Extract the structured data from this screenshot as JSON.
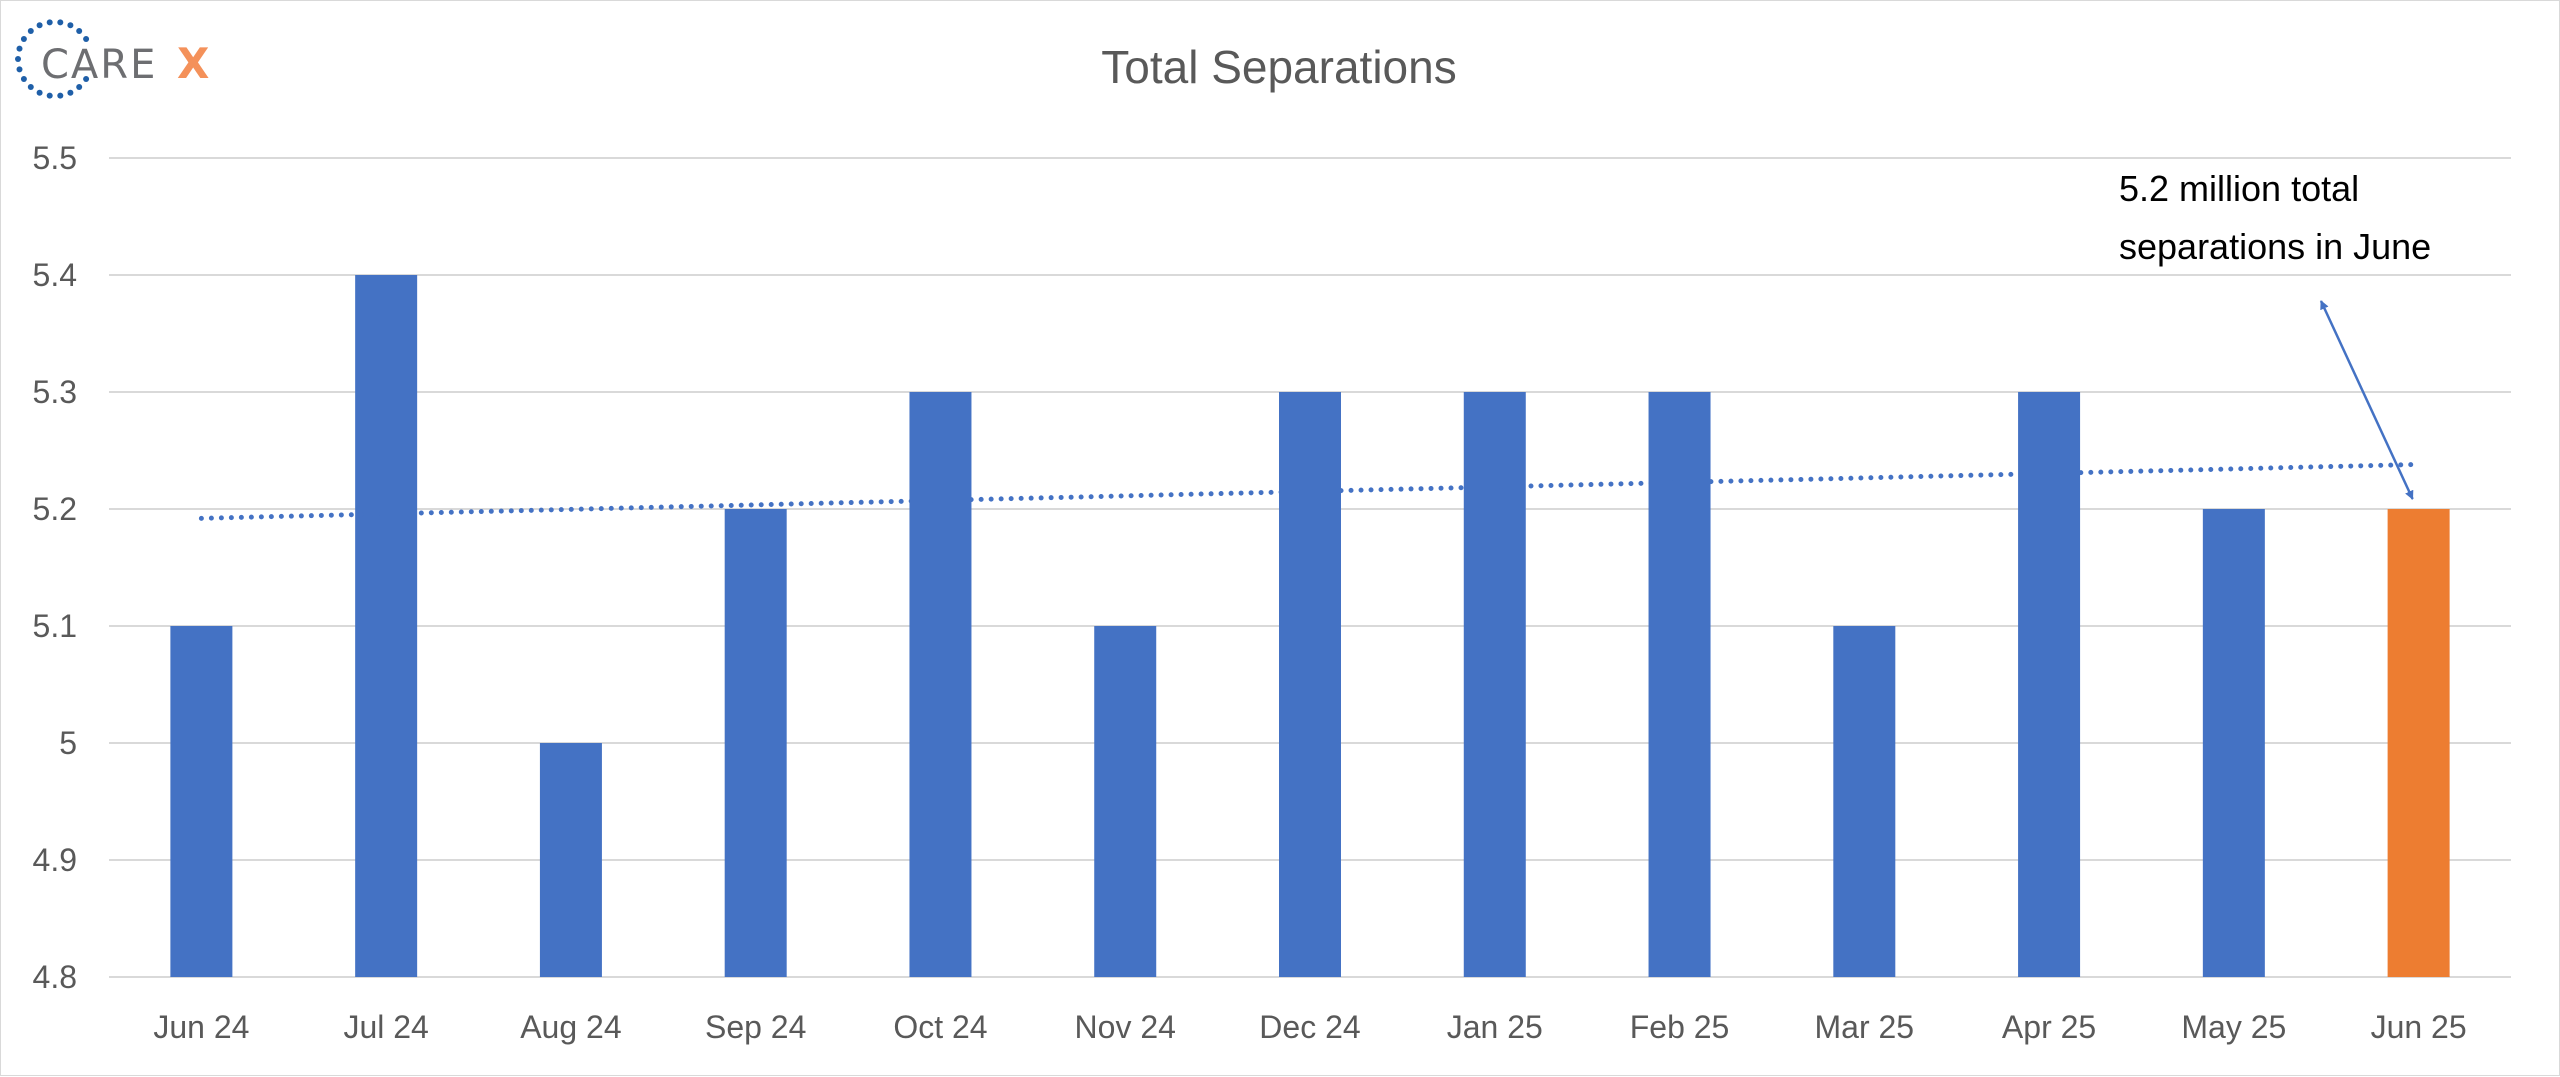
{
  "logo": {
    "text": "CARE",
    "accent_letter": "X",
    "text_color": "#6d6e71",
    "accent_color": "#f4915a",
    "dot_color": "#1f5fa8"
  },
  "chart_data": {
    "type": "bar",
    "title": "Total Separations",
    "xlabel": "",
    "ylabel": "",
    "ylim": [
      4.8,
      5.5
    ],
    "yticks": [
      "4.8",
      "4.9",
      "5",
      "5.1",
      "5.2",
      "5.3",
      "5.4",
      "5.5"
    ],
    "ytick_values": [
      4.8,
      4.9,
      5.0,
      5.1,
      5.2,
      5.3,
      5.4,
      5.5
    ],
    "categories": [
      "Jun 24",
      "Jul 24",
      "Aug 24",
      "Sep 24",
      "Oct 24",
      "Nov 24",
      "Dec 24",
      "Jan 25",
      "Feb 25",
      "Mar 25",
      "Apr 25",
      "May 25",
      "Jun 25"
    ],
    "values": [
      5.1,
      5.4,
      5.0,
      5.2,
      5.3,
      5.1,
      5.3,
      5.3,
      5.3,
      5.1,
      5.3,
      5.2,
      5.2
    ],
    "bar_colors": [
      "#4472c4",
      "#4472c4",
      "#4472c4",
      "#4472c4",
      "#4472c4",
      "#4472c4",
      "#4472c4",
      "#4472c4",
      "#4472c4",
      "#4472c4",
      "#4472c4",
      "#4472c4",
      "#ed7d31"
    ],
    "trendline": {
      "style": "dotted",
      "color": "#4472c4",
      "start_value": 5.192,
      "end_value": 5.238
    },
    "grid": true,
    "legend": "none",
    "annotation": {
      "lines": [
        "5.2 million total",
        "separations in June"
      ],
      "points_to": "Jun 25",
      "arrow_color": "#4472c4"
    }
  }
}
